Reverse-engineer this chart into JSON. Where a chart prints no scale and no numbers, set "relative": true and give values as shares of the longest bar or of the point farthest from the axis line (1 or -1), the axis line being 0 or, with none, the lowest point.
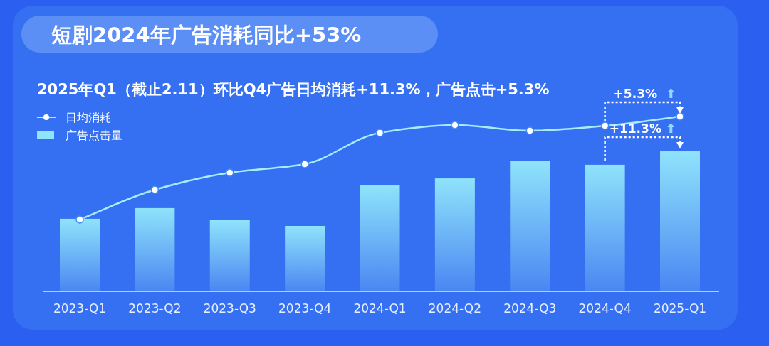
{
  "chart_data": {
    "type": "bar",
    "title": "短剧2024年广告消耗同比+53%",
    "subtitle": "2025年Q1（截止2.11）环比Q4广告日均消耗+11.3%，广告点击+5.3%",
    "categories": [
      "2023-Q1",
      "2023-Q2",
      "2023-Q3",
      "2023-Q4",
      "2024-Q1",
      "2024-Q2",
      "2024-Q3",
      "2024-Q4",
      "2025-Q1"
    ],
    "relative": true,
    "legend": "top left",
    "marker": "circle",
    "series": [
      {
        "name": "日均消耗",
        "type": "line",
        "color": "#a8ecff",
        "values": [
          0.411,
          0.581,
          0.679,
          0.728,
          0.907,
          0.951,
          0.919,
          0.947,
          1
        ]
      },
      {
        "name": "广告点击量",
        "color": "#8fe3fb",
        "values": [
          0.415,
          0.476,
          0.407,
          0.374,
          0.606,
          0.646,
          0.744,
          0.724,
          0.801
        ]
      }
    ],
    "annotations": [
      "+5.3%",
      "+11.3%"
    ]
  }
}
